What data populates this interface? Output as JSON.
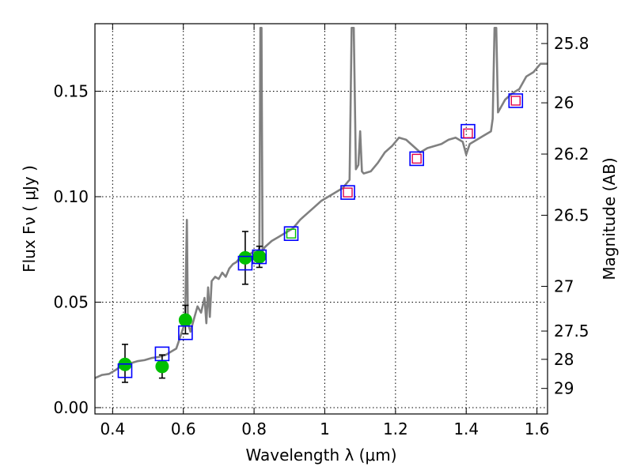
{
  "chart_data": {
    "type": "scatter",
    "xlabel": "Wavelength  λ (μm)",
    "ylabel": "Flux  Fν  ( μJy )",
    "ylabel_right": "Magnitude (AB)",
    "xlim": [
      0.35,
      1.63
    ],
    "ylim": [
      -0.003,
      0.182
    ],
    "grid": true,
    "xticks": [
      {
        "value": 0.4,
        "label": "0.4"
      },
      {
        "value": 0.6,
        "label": "0.6"
      },
      {
        "value": 0.8,
        "label": "0.8"
      },
      {
        "value": 1.0,
        "label": "1"
      },
      {
        "value": 1.2,
        "label": "1.2"
      },
      {
        "value": 1.4,
        "label": "1.4"
      },
      {
        "value": 1.6,
        "label": "1.6"
      }
    ],
    "yticks": [
      {
        "value": 0.0,
        "label": "0.00"
      },
      {
        "value": 0.05,
        "label": "0.05"
      },
      {
        "value": 0.1,
        "label": "0.10"
      },
      {
        "value": 0.15,
        "label": "0.15"
      }
    ],
    "right_ticks": [
      {
        "label": "25.8",
        "flux": 0.1726
      },
      {
        "label": "26",
        "flux": 0.1445
      },
      {
        "label": "26.2",
        "flux": 0.1202
      },
      {
        "label": "26.5",
        "flux": 0.0912
      },
      {
        "label": "27",
        "flux": 0.0575
      },
      {
        "label": "27.5",
        "flux": 0.0363
      },
      {
        "label": "28",
        "flux": 0.0229
      },
      {
        "label": "29",
        "flux": 0.0091
      }
    ],
    "model_spectrum": {
      "color": "#808080",
      "points": [
        [
          0.35,
          0.014
        ],
        [
          0.37,
          0.0155
        ],
        [
          0.39,
          0.016
        ],
        [
          0.41,
          0.018
        ],
        [
          0.43,
          0.0205
        ],
        [
          0.45,
          0.021
        ],
        [
          0.47,
          0.022
        ],
        [
          0.49,
          0.0225
        ],
        [
          0.51,
          0.0235
        ],
        [
          0.53,
          0.024
        ],
        [
          0.55,
          0.025
        ],
        [
          0.57,
          0.027
        ],
        [
          0.58,
          0.028
        ],
        [
          0.59,
          0.033
        ],
        [
          0.6,
          0.038
        ],
        [
          0.605,
          0.043
        ],
        [
          0.61,
          0.089
        ],
        [
          0.613,
          0.04
        ],
        [
          0.62,
          0.036
        ],
        [
          0.63,
          0.042
        ],
        [
          0.64,
          0.048
        ],
        [
          0.65,
          0.045
        ],
        [
          0.66,
          0.052
        ],
        [
          0.665,
          0.04
        ],
        [
          0.67,
          0.057
        ],
        [
          0.675,
          0.043
        ],
        [
          0.68,
          0.06
        ],
        [
          0.69,
          0.062
        ],
        [
          0.7,
          0.061
        ],
        [
          0.71,
          0.064
        ],
        [
          0.72,
          0.062
        ],
        [
          0.73,
          0.066
        ],
        [
          0.74,
          0.068
        ],
        [
          0.75,
          0.069
        ],
        [
          0.76,
          0.071
        ],
        [
          0.77,
          0.072
        ],
        [
          0.78,
          0.071
        ],
        [
          0.79,
          0.073
        ],
        [
          0.8,
          0.074
        ],
        [
          0.81,
          0.073
        ],
        [
          0.815,
          0.076
        ],
        [
          0.818,
          0.18
        ],
        [
          0.821,
          0.18
        ],
        [
          0.824,
          0.074
        ],
        [
          0.83,
          0.076
        ],
        [
          0.85,
          0.079
        ],
        [
          0.87,
          0.081
        ],
        [
          0.89,
          0.083
        ],
        [
          0.91,
          0.085
        ],
        [
          0.93,
          0.089
        ],
        [
          0.95,
          0.092
        ],
        [
          0.97,
          0.095
        ],
        [
          0.99,
          0.098
        ],
        [
          1.01,
          0.1
        ],
        [
          1.03,
          0.102
        ],
        [
          1.05,
          0.104
        ],
        [
          1.07,
          0.108
        ],
        [
          1.076,
          0.18
        ],
        [
          1.082,
          0.18
        ],
        [
          1.088,
          0.113
        ],
        [
          1.095,
          0.115
        ],
        [
          1.1,
          0.131
        ],
        [
          1.105,
          0.112
        ],
        [
          1.11,
          0.111
        ],
        [
          1.13,
          0.112
        ],
        [
          1.15,
          0.116
        ],
        [
          1.17,
          0.121
        ],
        [
          1.19,
          0.124
        ],
        [
          1.21,
          0.128
        ],
        [
          1.23,
          0.127
        ],
        [
          1.25,
          0.124
        ],
        [
          1.27,
          0.121
        ],
        [
          1.29,
          0.123
        ],
        [
          1.31,
          0.124
        ],
        [
          1.33,
          0.125
        ],
        [
          1.35,
          0.127
        ],
        [
          1.37,
          0.128
        ],
        [
          1.39,
          0.126
        ],
        [
          1.4,
          0.12
        ],
        [
          1.41,
          0.125
        ],
        [
          1.43,
          0.127
        ],
        [
          1.45,
          0.129
        ],
        [
          1.47,
          0.131
        ],
        [
          1.475,
          0.137
        ],
        [
          1.48,
          0.18
        ],
        [
          1.485,
          0.18
        ],
        [
          1.49,
          0.14
        ],
        [
          1.51,
          0.146
        ],
        [
          1.53,
          0.149
        ],
        [
          1.55,
          0.151
        ],
        [
          1.57,
          0.157
        ],
        [
          1.59,
          0.159
        ],
        [
          1.61,
          0.163
        ],
        [
          1.63,
          0.163
        ]
      ]
    },
    "measured": {
      "color": "#00c000",
      "points": [
        {
          "x": 0.435,
          "y": 0.0205,
          "err_lo": 0.0085,
          "err_hi": 0.0095
        },
        {
          "x": 0.54,
          "y": 0.0195,
          "err_lo": 0.0055,
          "err_hi": 0.0055
        },
        {
          "x": 0.606,
          "y": 0.0415,
          "err_lo": 0.0065,
          "err_hi": 0.007
        },
        {
          "x": 0.775,
          "y": 0.071,
          "err_lo": 0.0125,
          "err_hi": 0.0125
        },
        {
          "x": 0.815,
          "y": 0.0715,
          "err_lo": 0.005,
          "err_hi": 0.005
        }
      ]
    },
    "model_photometry": {
      "color": "#0000ff",
      "points": [
        {
          "x": 0.435,
          "y": 0.0175
        },
        {
          "x": 0.54,
          "y": 0.0255
        },
        {
          "x": 0.606,
          "y": 0.0355
        },
        {
          "x": 0.775,
          "y": 0.0685
        },
        {
          "x": 0.815,
          "y": 0.0715
        },
        {
          "x": 0.905,
          "y": 0.0825
        },
        {
          "x": 1.065,
          "y": 0.102
        },
        {
          "x": 1.26,
          "y": 0.118
        },
        {
          "x": 1.405,
          "y": 0.131
        },
        {
          "x": 1.54,
          "y": 0.1455
        }
      ]
    },
    "inner_markers": [
      {
        "x": 0.905,
        "y": 0.0825,
        "color": "#00c000"
      },
      {
        "x": 1.065,
        "y": 0.102,
        "color": "#e0004a"
      },
      {
        "x": 1.26,
        "y": 0.118,
        "color": "#e0004a"
      },
      {
        "x": 1.405,
        "y": 0.13,
        "color": "#e0004a"
      },
      {
        "x": 1.54,
        "y": 0.1455,
        "color": "#e0004a"
      }
    ]
  }
}
